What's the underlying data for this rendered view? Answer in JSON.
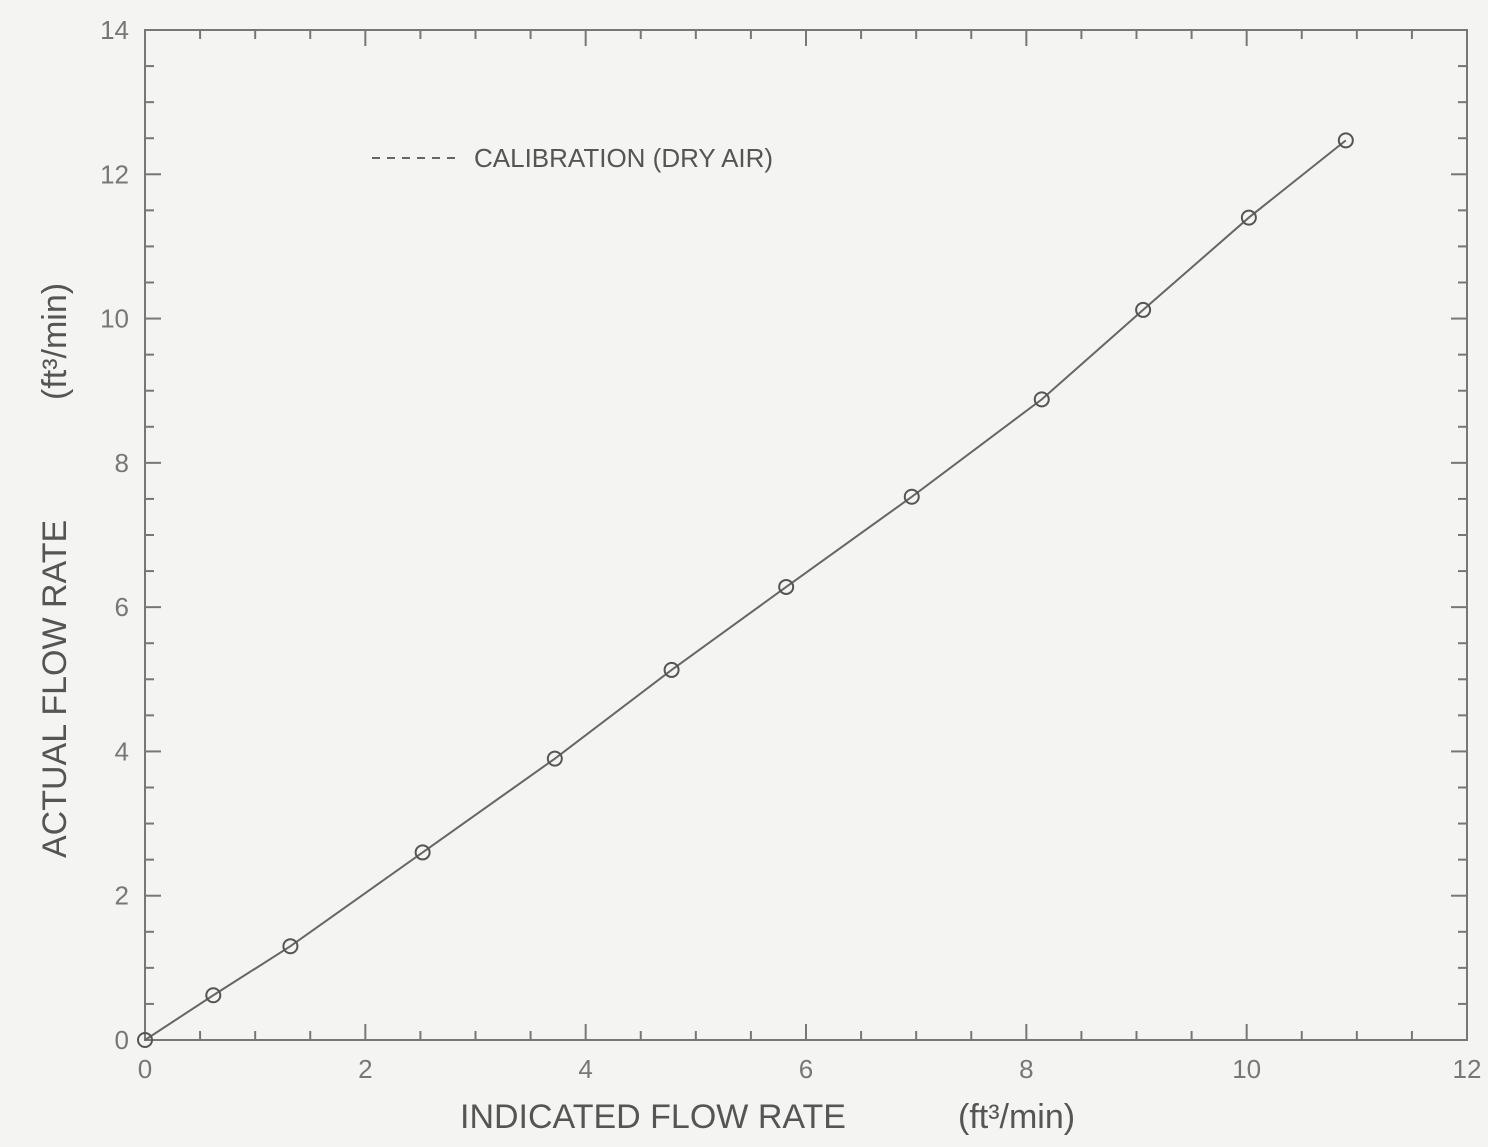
{
  "chart_data": {
    "type": "line",
    "title": "",
    "xlabel": "INDICATED FLOW RATE",
    "xlabel_unit": "(ft³/min)",
    "ylabel": "ACTUAL FLOW RATE",
    "ylabel_unit": "(ft³/min)",
    "xlim": [
      0,
      12
    ],
    "ylim": [
      0,
      14
    ],
    "xticks": [
      0,
      2,
      4,
      6,
      8,
      10,
      12
    ],
    "yticks": [
      0,
      2,
      4,
      6,
      8,
      10,
      12,
      14
    ],
    "grid": false,
    "legend": {
      "placement": "top-left",
      "entries": [
        "CALIBRATION (DRY AIR)"
      ]
    },
    "colors": {
      "line": "#666666",
      "marker": "#555555",
      "axes": "#777777"
    },
    "series": [
      {
        "name": "CALIBRATION (DRY AIR)",
        "x": [
          0,
          0.62,
          1.32,
          2.52,
          3.72,
          4.78,
          5.82,
          6.96,
          8.14,
          9.06,
          10.02,
          10.9
        ],
        "y": [
          0,
          0.62,
          1.3,
          2.6,
          3.9,
          5.13,
          6.28,
          7.53,
          8.88,
          10.12,
          11.4,
          12.47
        ]
      }
    ]
  }
}
